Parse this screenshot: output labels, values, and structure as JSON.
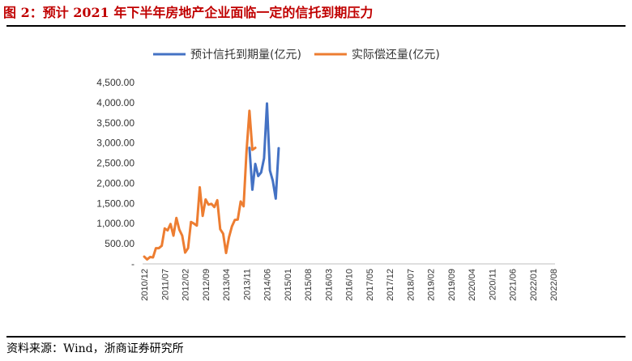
{
  "title": "图 2：预计 2021 年下半年房地产企业面临一定的信托到期压力",
  "source": "资料来源：Wind，浙商证券研究所",
  "chart_data": {
    "type": "line",
    "ylim": [
      0,
      4500
    ],
    "ytick_labels": [
      "-",
      "500.00",
      "1,000.00",
      "1,500.00",
      "2,000.00",
      "2,500.00",
      "3,000.00",
      "3,500.00",
      "4,000.00",
      "4,500.00"
    ],
    "x_tick_labels": [
      "2010/12",
      "2011/07",
      "2012/02",
      "2012/09",
      "2013/04",
      "2013/11",
      "2014/06",
      "2015/01",
      "2015/08",
      "2016/03",
      "2016/10",
      "2017/05",
      "2017/12",
      "2018/07",
      "2019/02",
      "2019/09",
      "2020/04",
      "2020/11",
      "2021/06",
      "2022/01",
      "2022/08"
    ],
    "legend_position": "top-center",
    "grid": false,
    "series": [
      {
        "name": "预计信托到期量(亿元)",
        "color": "#4472c4",
        "start_index": 36,
        "values": [
          2880,
          1840,
          2480,
          2180,
          2270,
          2620,
          3980,
          2320,
          2060,
          1620,
          2870
        ]
      },
      {
        "name": "实际偿还量(亿元)",
        "color": "#ed7d31",
        "start_index": 0,
        "values": [
          180,
          110,
          170,
          160,
          390,
          390,
          450,
          880,
          830,
          990,
          700,
          1140,
          850,
          700,
          280,
          390,
          1040,
          1000,
          950,
          1900,
          1190,
          1600,
          1470,
          1490,
          1410,
          1580,
          860,
          750,
          270,
          660,
          930,
          1090,
          1100,
          1550,
          1430,
          2790,
          3800,
          2830,
          2880
        ]
      }
    ]
  }
}
